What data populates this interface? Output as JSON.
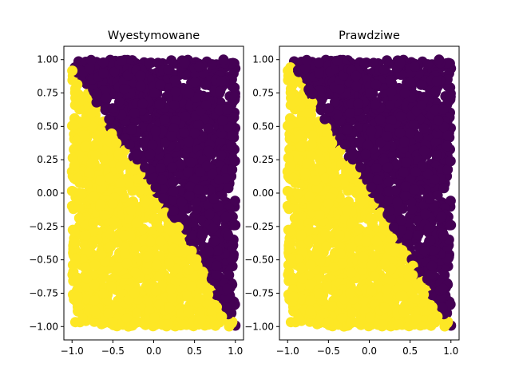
{
  "chart_data": [
    {
      "type": "scatter",
      "title": "Wyestymowane",
      "xlabel": "",
      "ylabel": "",
      "xlim": [
        -1.1,
        1.1
      ],
      "ylim": [
        -1.1,
        1.1
      ],
      "xticks": [
        -1.0,
        -0.5,
        0.0,
        0.5,
        1.0
      ],
      "xtick_labels": [
        "−1.0",
        "−0.5",
        "0.0",
        "0.5",
        "1.0"
      ],
      "yticks": [
        1.0,
        0.75,
        0.5,
        0.25,
        0.0,
        -0.25,
        -0.5,
        -0.75,
        -1.0
      ],
      "ytick_labels": [
        "1.00",
        "0.75",
        "0.50",
        "0.25",
        "0.00",
        "−0.25",
        "−0.50",
        "−0.75",
        "−1.00"
      ],
      "grid": false,
      "point_domain": {
        "x": [
          -1.0,
          1.0
        ],
        "y": [
          -1.0,
          1.0
        ]
      },
      "classes": [
        {
          "color": "#fde725",
          "region": "below boundary"
        },
        {
          "color": "#440154",
          "region": "above boundary"
        }
      ],
      "decision_boundary": {
        "x": [
          -1.0,
          -0.7,
          -0.45,
          -0.2,
          0.0,
          0.2,
          0.45,
          0.7,
          1.0
        ],
        "y": [
          0.95,
          0.65,
          0.4,
          0.2,
          0.02,
          -0.15,
          -0.4,
          -0.7,
          -1.0
        ]
      }
    },
    {
      "type": "scatter",
      "title": "Prawdziwe",
      "xlabel": "",
      "ylabel": "",
      "xlim": [
        -1.1,
        1.1
      ],
      "ylim": [
        -1.1,
        1.1
      ],
      "xticks": [
        -1.0,
        -0.5,
        0.0,
        0.5,
        1.0
      ],
      "xtick_labels": [
        "−1.0",
        "−0.5",
        "0.0",
        "0.5",
        "1.0"
      ],
      "yticks": [
        1.0,
        0.75,
        0.5,
        0.25,
        0.0,
        -0.25,
        -0.5,
        -0.75,
        -1.0
      ],
      "ytick_labels": [
        "1.00",
        "0.75",
        "0.50",
        "0.25",
        "0.00",
        "−0.25",
        "−0.50",
        "−0.75",
        "−1.00"
      ],
      "grid": false,
      "point_domain": {
        "x": [
          -1.0,
          1.0
        ],
        "y": [
          -1.0,
          1.0
        ]
      },
      "classes": [
        {
          "color": "#fde725",
          "region": "below boundary"
        },
        {
          "color": "#440154",
          "region": "above boundary"
        }
      ],
      "decision_boundary": {
        "x": [
          -1.0,
          1.0
        ],
        "y": [
          1.0,
          -1.0
        ]
      }
    }
  ]
}
